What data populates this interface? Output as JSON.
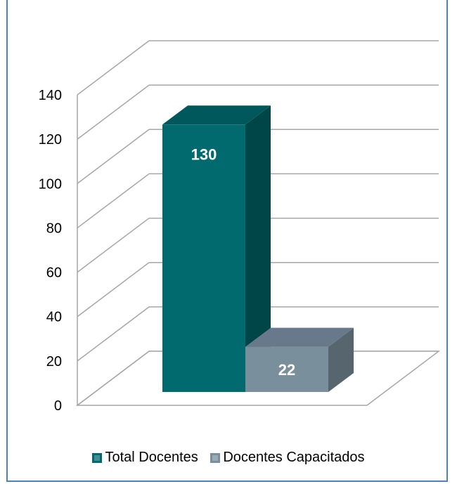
{
  "chart_data": {
    "type": "bar",
    "style": "3d-column",
    "title": "",
    "categories": [
      ""
    ],
    "series": [
      {
        "name": "Total Docentes",
        "values": [
          130
        ],
        "color": "#006a6e",
        "side_color": "#004548",
        "top_color": "#00585c"
      },
      {
        "name": "Docentes Capacitados",
        "values": [
          22
        ],
        "color": "#7a8f9c",
        "side_color": "#56656e",
        "top_color": "#67798a"
      }
    ],
    "data_labels": [
      "130",
      "22"
    ],
    "ylim": [
      0,
      140
    ],
    "yticks": [
      "0",
      "20",
      "40",
      "60",
      "80",
      "100",
      "120",
      "140"
    ],
    "xlabel": "",
    "ylabel": "",
    "grid": true,
    "legend_position": "bottom",
    "frame_color": "#4f81bd",
    "grid_color": "#a6a6a6"
  }
}
